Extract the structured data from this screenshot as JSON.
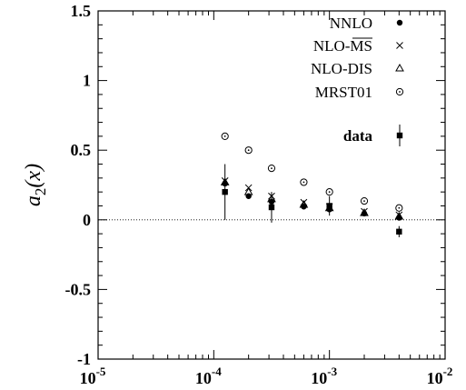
{
  "chart_data": {
    "type": "scatter",
    "x_scale": "log",
    "xlim": [
      1e-05,
      0.01
    ],
    "ylim": [
      -1,
      1.5
    ],
    "ylabel_base": "a",
    "ylabel_sub": "2",
    "ylabel_arg": "(x)",
    "y_ticks": [
      "1.5",
      "1",
      "0.5",
      "0",
      "-0.5",
      "-1"
    ],
    "x_ticks": [
      {
        "base": "10",
        "exp": "-5"
      },
      {
        "base": "10",
        "exp": "-4"
      },
      {
        "base": "10",
        "exp": "-3"
      },
      {
        "base": "10",
        "exp": "-2"
      }
    ],
    "zero_line": true,
    "legend_position": "top-right",
    "series": [
      {
        "name": "NNLO",
        "marker": "filled-circle",
        "points": [
          [
            0.000125,
            0.26
          ],
          [
            0.0002,
            0.17
          ],
          [
            0.000316,
            0.13
          ],
          [
            0.0006,
            0.095
          ],
          [
            0.001,
            0.075
          ],
          [
            0.002,
            0.045
          ],
          [
            0.004,
            0.015
          ]
        ]
      },
      {
        "name": "NLO-MS",
        "marker": "cross",
        "points": [
          [
            0.000125,
            0.28
          ],
          [
            0.0002,
            0.23
          ],
          [
            0.000316,
            0.17
          ],
          [
            0.0006,
            0.125
          ],
          [
            0.001,
            0.095
          ],
          [
            0.002,
            0.06
          ],
          [
            0.004,
            0.035
          ]
        ]
      },
      {
        "name": "NLO-DIS",
        "marker": "triangle",
        "points": [
          [
            0.000125,
            0.27
          ],
          [
            0.0002,
            0.2
          ],
          [
            0.000316,
            0.15
          ],
          [
            0.0006,
            0.11
          ],
          [
            0.001,
            0.085
          ],
          [
            0.002,
            0.05
          ],
          [
            0.004,
            0.025
          ]
        ]
      },
      {
        "name": "MRST01",
        "marker": "dotted-circle",
        "points": [
          [
            0.000125,
            0.6
          ],
          [
            0.0002,
            0.5
          ],
          [
            0.000316,
            0.37
          ],
          [
            0.0006,
            0.27
          ],
          [
            0.001,
            0.2
          ],
          [
            0.002,
            0.135
          ],
          [
            0.004,
            0.085
          ]
        ]
      },
      {
        "name": "data",
        "marker": "filled-square-errorbar",
        "points": [
          [
            0.000125,
            0.2,
            0.2
          ],
          [
            0.000316,
            0.09,
            0.11
          ],
          [
            0.001,
            0.1,
            0.07
          ],
          [
            0.004,
            -0.085,
            0.04
          ]
        ]
      }
    ]
  }
}
